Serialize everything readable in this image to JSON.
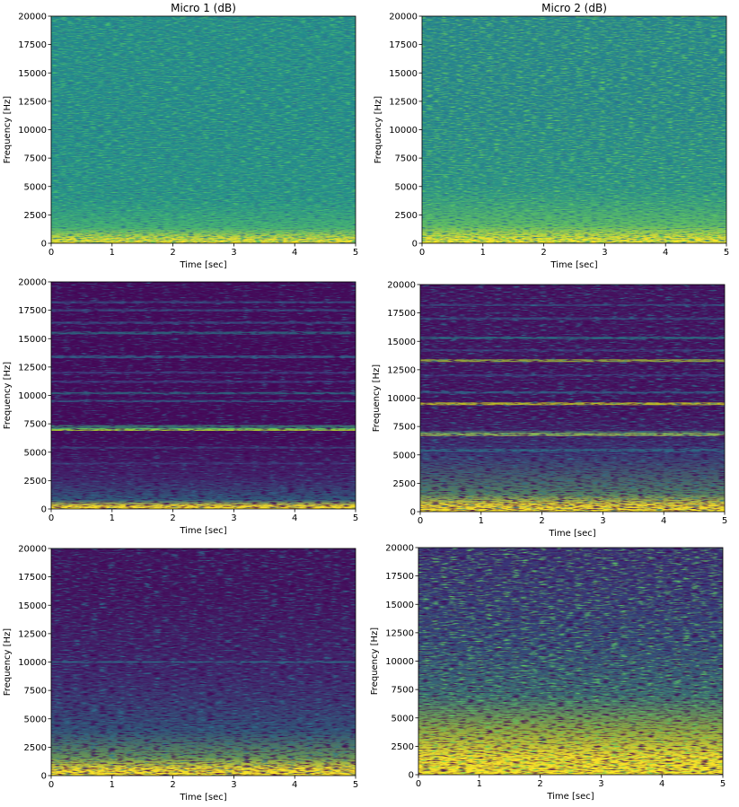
{
  "chart_data": [
    {
      "type": "heatmap",
      "title": "Micro 1 (dB)",
      "xlabel": "Time [sec]",
      "ylabel": "Frequency [Hz]",
      "xlim": [
        0,
        5
      ],
      "xticks": [
        0,
        1,
        2,
        3,
        4,
        5
      ],
      "ylim": [
        0,
        20000
      ],
      "yticks": [
        0,
        2500,
        5000,
        7500,
        10000,
        12500,
        15000,
        17500,
        20000
      ]
    },
    {
      "type": "heatmap",
      "title": "Micro 2 (dB)",
      "xlabel": "Time [sec]",
      "ylabel": "Frequency [Hz]",
      "xlim": [
        0,
        5
      ],
      "xticks": [
        0,
        1,
        2,
        3,
        4,
        5
      ],
      "ylim": [
        0,
        20000
      ],
      "yticks": [
        0,
        2500,
        5000,
        7500,
        10000,
        12500,
        15000,
        17500,
        20000
      ]
    },
    {
      "type": "heatmap",
      "xlabel": "Time [sec]",
      "ylabel": "Frequency [Hz]",
      "xlim": [
        0,
        5
      ],
      "xticks": [
        0,
        1,
        2,
        3,
        4,
        5
      ],
      "ylim": [
        0,
        20000
      ],
      "yticks": [
        0,
        2500,
        5000,
        7500,
        10000,
        12500,
        15000,
        17500,
        20000
      ]
    },
    {
      "type": "heatmap",
      "xlabel": "Time [sec]",
      "ylabel": "Frequency [Hz]",
      "xlim": [
        0,
        5
      ],
      "xticks": [
        0,
        1,
        2,
        3,
        4,
        5
      ],
      "ylim": [
        0,
        20000
      ],
      "yticks": [
        0,
        2500,
        5000,
        7500,
        10000,
        12500,
        15000,
        17500,
        20000
      ]
    },
    {
      "type": "heatmap",
      "xlabel": "Time [sec]",
      "ylabel": "Frequency [Hz]",
      "xlim": [
        0,
        5
      ],
      "xticks": [
        0,
        1,
        2,
        3,
        4,
        5
      ],
      "ylim": [
        0,
        20000
      ],
      "yticks": [
        0,
        2500,
        5000,
        7500,
        10000,
        12500,
        15000,
        17500,
        20000
      ]
    },
    {
      "type": "heatmap",
      "xlabel": "Time [sec]",
      "ylabel": "Frequency [Hz]",
      "xlim": [
        0,
        5
      ],
      "xticks": [
        0,
        1,
        2,
        3,
        4,
        5
      ],
      "ylim": [
        0,
        20000
      ],
      "yticks": [
        0,
        2500,
        5000,
        7500,
        10000,
        12500,
        15000,
        17500,
        20000
      ]
    }
  ]
}
